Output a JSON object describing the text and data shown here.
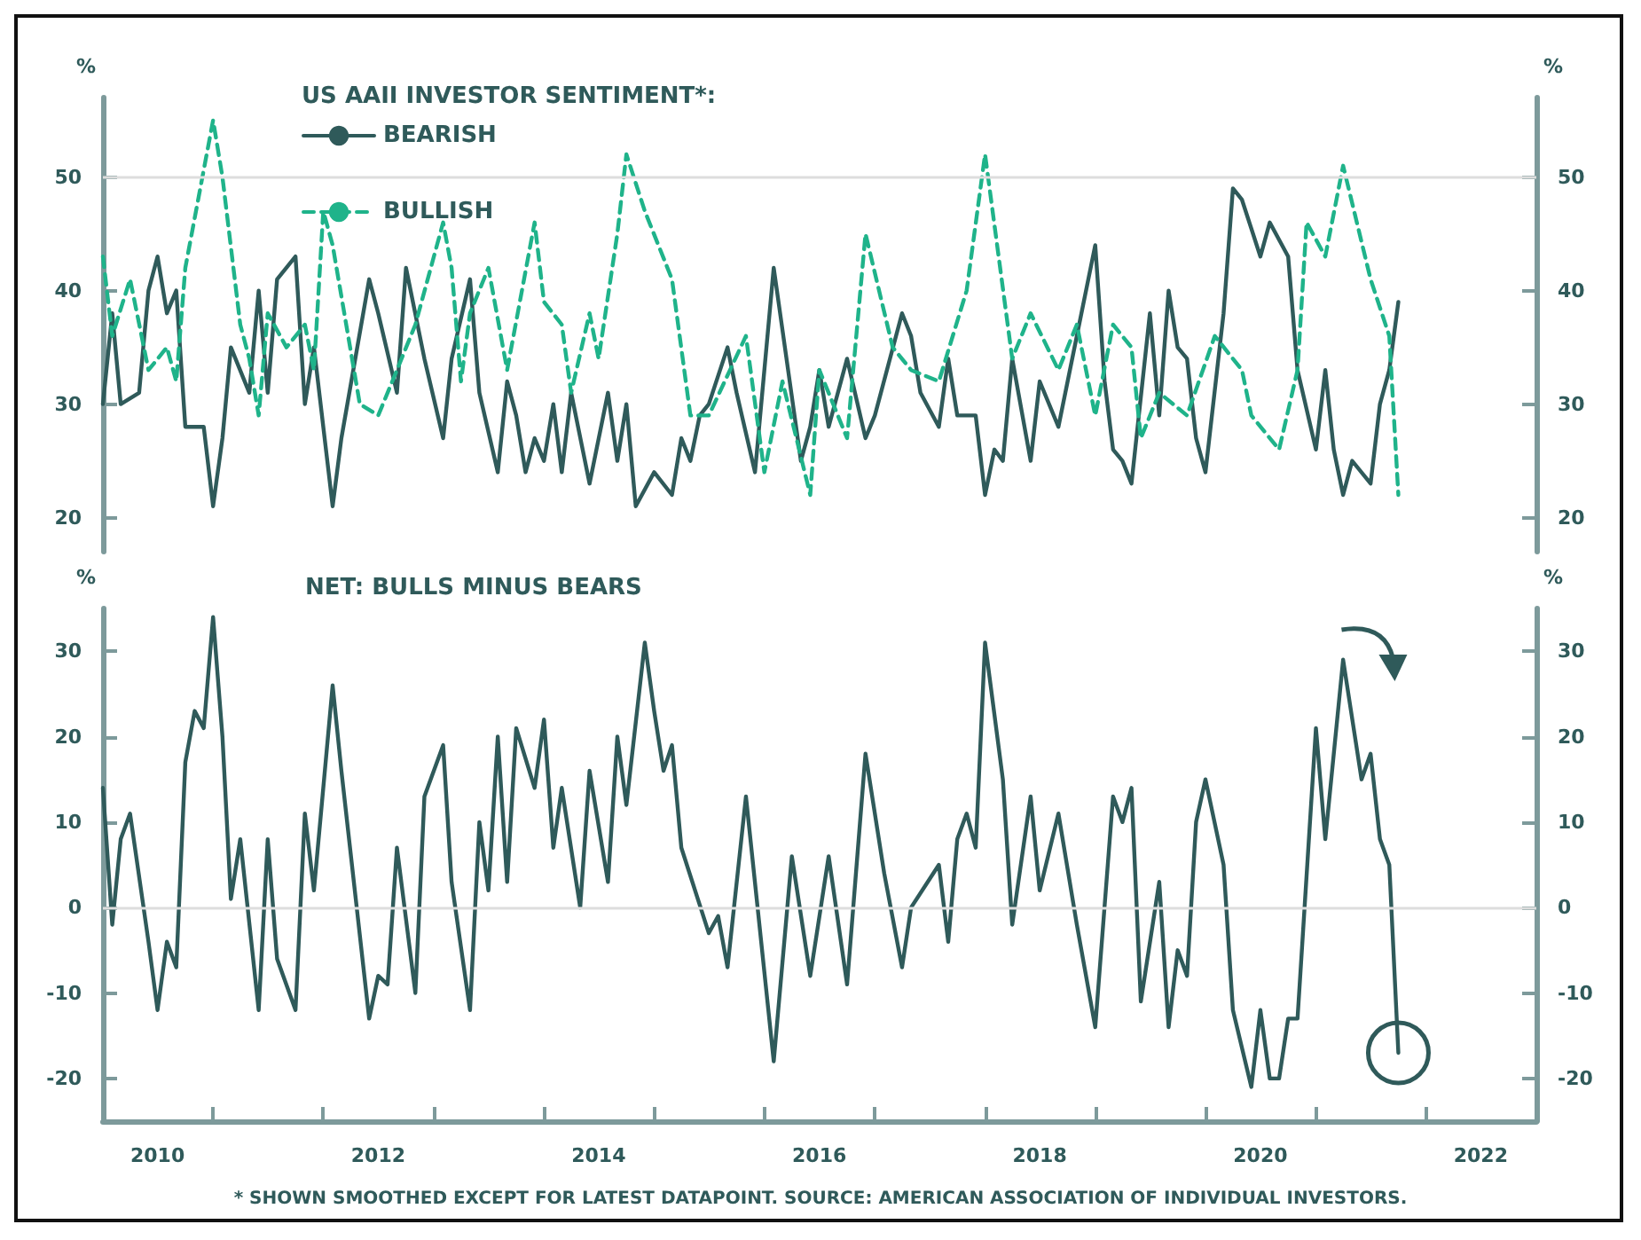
{
  "chart_data": [
    {
      "type": "line",
      "legend_title": "US AAII INVESTOR SENTIMENT*:",
      "ylabel": "%",
      "y2label": "%",
      "xlim": [
        "2010-01",
        "2023-01"
      ],
      "ylim": [
        17,
        57
      ],
      "yticks": [
        20,
        30,
        40,
        50
      ],
      "y2lim": [
        17,
        57
      ],
      "y2ticks": [
        20,
        30,
        40,
        50
      ],
      "tick_labels": "y",
      "legend": "top left",
      "grid": false,
      "ref_lines": [
        {
          "axis": "y",
          "value": 50,
          "label": null,
          "color": "#dddddd"
        }
      ],
      "series": [
        {
          "name": "BEARISH",
          "color": "#2f5a5a",
          "line_style": "solid",
          "x": [
            "2010-01",
            "2010-02",
            "2010-03",
            "2010-05",
            "2010-06",
            "2010-07",
            "2010-08",
            "2010-09",
            "2010-10",
            "2010-12",
            "2011-01",
            "2011-02",
            "2011-03",
            "2011-05",
            "2011-06",
            "2011-07",
            "2011-08",
            "2011-10",
            "2011-11",
            "2011-12",
            "2012-02",
            "2012-03",
            "2012-06",
            "2012-07",
            "2012-09",
            "2012-10",
            "2012-12",
            "2013-02",
            "2013-03",
            "2013-05",
            "2013-06",
            "2013-08",
            "2013-09",
            "2013-10",
            "2013-11",
            "2013-12",
            "2014-01",
            "2014-02",
            "2014-03",
            "2014-04",
            "2014-06",
            "2014-08",
            "2014-09",
            "2014-10",
            "2014-11",
            "2015-01",
            "2015-03",
            "2015-04",
            "2015-05",
            "2015-06",
            "2015-07",
            "2015-09",
            "2015-10",
            "2015-12",
            "2016-02",
            "2016-05",
            "2016-06",
            "2016-07",
            "2016-08",
            "2016-10",
            "2016-12",
            "2017-01",
            "2017-04",
            "2017-05",
            "2017-06",
            "2017-08",
            "2017-09",
            "2017-10",
            "2017-12",
            "2018-01",
            "2018-02",
            "2018-03",
            "2018-04",
            "2018-06",
            "2018-07",
            "2018-09",
            "2018-11",
            "2019-01",
            "2019-02",
            "2019-03",
            "2019-04",
            "2019-05",
            "2019-07",
            "2019-08",
            "2019-09",
            "2019-10",
            "2019-11",
            "2019-12",
            "2020-01",
            "2020-03",
            "2020-04",
            "2020-05",
            "2020-07",
            "2020-08",
            "2020-10",
            "2020-11",
            "2021-01",
            "2021-02",
            "2021-03",
            "2021-04",
            "2021-05",
            "2021-07",
            "2021-08",
            "2021-09",
            "2021-10"
          ],
          "values": [
            30,
            38,
            30,
            31,
            40,
            43,
            38,
            40,
            28,
            28,
            21,
            27,
            35,
            31,
            40,
            31,
            41,
            43,
            30,
            35,
            21,
            27,
            41,
            38,
            31,
            42,
            34,
            27,
            34,
            41,
            31,
            24,
            32,
            29,
            24,
            27,
            25,
            30,
            24,
            31,
            23,
            31,
            25,
            30,
            21,
            24,
            22,
            27,
            25,
            29,
            30,
            35,
            31,
            24,
            42,
            25,
            28,
            33,
            28,
            34,
            27,
            29,
            38,
            36,
            31,
            28,
            34,
            29,
            29,
            22,
            26,
            25,
            34,
            25,
            32,
            28,
            36,
            44,
            32,
            26,
            25,
            23,
            38,
            29,
            40,
            35,
            34,
            27,
            24,
            38,
            49,
            48,
            43,
            46,
            43,
            33,
            26,
            33,
            26,
            22,
            25,
            23,
            30,
            33,
            39
          ]
        },
        {
          "name": "BULLISH",
          "color": "#1fb38a",
          "line_style": "dashed",
          "x": [
            "2010-01",
            "2010-02",
            "2010-04",
            "2010-06",
            "2010-08",
            "2010-09",
            "2010-10",
            "2011-01",
            "2011-02",
            "2011-04",
            "2011-05",
            "2011-06",
            "2011-07",
            "2011-09",
            "2011-11",
            "2011-12",
            "2012-01",
            "2012-02",
            "2012-05",
            "2012-07",
            "2012-09",
            "2012-11",
            "2013-02",
            "2013-03",
            "2013-04",
            "2013-05",
            "2013-07",
            "2013-09",
            "2013-12",
            "2014-01",
            "2014-03",
            "2014-04",
            "2014-06",
            "2014-07",
            "2014-09",
            "2014-10",
            "2014-12",
            "2015-03",
            "2015-05",
            "2015-07",
            "2015-11",
            "2016-01",
            "2016-03",
            "2016-06",
            "2016-07",
            "2016-10",
            "2016-12",
            "2017-03",
            "2017-05",
            "2017-08",
            "2017-11",
            "2018-01",
            "2018-04",
            "2018-06",
            "2018-09",
            "2018-11",
            "2019-01",
            "2019-03",
            "2019-05",
            "2019-06",
            "2019-08",
            "2019-11",
            "2020-02",
            "2020-05",
            "2020-06",
            "2020-09",
            "2020-11",
            "2020-12",
            "2021-02",
            "2021-04",
            "2021-07",
            "2021-09",
            "2021-10"
          ],
          "values": [
            43,
            36,
            41,
            33,
            35,
            32,
            42,
            55,
            50,
            37,
            34,
            29,
            38,
            35,
            37,
            33,
            47,
            44,
            30,
            29,
            33,
            37,
            46,
            42,
            32,
            38,
            42,
            33,
            46,
            39,
            37,
            31,
            38,
            34,
            45,
            52,
            47,
            41,
            29,
            29,
            36,
            24,
            32,
            22,
            33,
            27,
            45,
            35,
            33,
            32,
            40,
            52,
            34,
            38,
            33,
            37,
            29,
            37,
            35,
            27,
            31,
            29,
            36,
            33,
            29,
            26,
            33,
            46,
            43,
            51,
            41,
            36,
            22
          ]
        }
      ]
    },
    {
      "type": "line",
      "title": "NET: BULLS MINUS BEARS",
      "ylabel": "%",
      "y2label": "%",
      "xlim": [
        "2010-01",
        "2023-01"
      ],
      "xticks": [
        {
          "value": "2010-07",
          "label": "2010"
        },
        {
          "value": "2011-01",
          "label": null
        },
        {
          "value": "2012-01",
          "label": null
        },
        {
          "value": "2012-07",
          "label": "2012"
        },
        {
          "value": "2013-01",
          "label": null
        },
        {
          "value": "2014-01",
          "label": null
        },
        {
          "value": "2014-07",
          "label": "2014"
        },
        {
          "value": "2015-01",
          "label": null
        },
        {
          "value": "2016-01",
          "label": null
        },
        {
          "value": "2016-07",
          "label": "2016"
        },
        {
          "value": "2017-01",
          "label": null
        },
        {
          "value": "2018-01",
          "label": null
        },
        {
          "value": "2018-07",
          "label": "2018"
        },
        {
          "value": "2019-01",
          "label": null
        },
        {
          "value": "2020-01",
          "label": null
        },
        {
          "value": "2020-07",
          "label": "2020"
        },
        {
          "value": "2021-01",
          "label": null
        },
        {
          "value": "2022-01",
          "label": null
        },
        {
          "value": "2022-07",
          "label": "2022"
        }
      ],
      "ylim": [
        -25,
        35
      ],
      "yticks": [
        -20,
        -10,
        0,
        10,
        20,
        30
      ],
      "y2lim": [
        -25,
        35
      ],
      "y2ticks": [
        -20,
        -10,
        0,
        10,
        20,
        30
      ],
      "grid": false,
      "ref_lines": [
        {
          "axis": "y",
          "value": 0,
          "label": null,
          "color": "#dddddd"
        }
      ],
      "annotations": [
        "* SHOWN SMOOTHED EXCEPT FOR LATEST DATAPOINT. SOURCE: AMERICAN ASSOCIATION OF INDIVIDUAL INVESTORS."
      ],
      "series": [
        {
          "color": "#2f5a5a",
          "x": [
            "2010-01",
            "2010-02",
            "2010-03",
            "2010-04",
            "2010-06",
            "2010-07",
            "2010-08",
            "2010-09",
            "2010-10",
            "2010-11",
            "2010-12",
            "2011-01",
            "2011-02",
            "2011-03",
            "2011-04",
            "2011-06",
            "2011-07",
            "2011-08",
            "2011-10",
            "2011-11",
            "2011-12",
            "2012-02",
            "2012-03",
            "2012-06",
            "2012-07",
            "2012-08",
            "2012-09",
            "2012-11",
            "2012-12",
            "2013-02",
            "2013-03",
            "2013-05",
            "2013-06",
            "2013-07",
            "2013-08",
            "2013-09",
            "2013-10",
            "2013-12",
            "2014-01",
            "2014-02",
            "2014-03",
            "2014-05",
            "2014-06",
            "2014-08",
            "2014-09",
            "2014-10",
            "2014-12",
            "2015-01",
            "2015-02",
            "2015-03",
            "2015-04",
            "2015-07",
            "2015-08",
            "2015-09",
            "2015-11",
            "2016-02",
            "2016-04",
            "2016-06",
            "2016-08",
            "2016-10",
            "2016-12",
            "2017-02",
            "2017-04",
            "2017-05",
            "2017-08",
            "2017-09",
            "2017-10",
            "2017-11",
            "2017-12",
            "2018-01",
            "2018-03",
            "2018-04",
            "2018-06",
            "2018-07",
            "2018-09",
            "2018-11",
            "2019-01",
            "2019-03",
            "2019-04",
            "2019-05",
            "2019-06",
            "2019-08",
            "2019-09",
            "2019-10",
            "2019-11",
            "2019-12",
            "2020-01",
            "2020-03",
            "2020-04",
            "2020-06",
            "2020-07",
            "2020-08",
            "2020-09",
            "2020-10",
            "2020-11",
            "2021-01",
            "2021-02",
            "2021-04",
            "2021-06",
            "2021-07",
            "2021-08",
            "2021-09",
            "2021-10"
          ],
          "values": [
            14,
            -2,
            8,
            11,
            -4,
            -12,
            -4,
            -7,
            17,
            23,
            21,
            34,
            20,
            1,
            8,
            -12,
            8,
            -6,
            -12,
            11,
            2,
            26,
            16,
            -13,
            -8,
            -9,
            7,
            -10,
            13,
            19,
            3,
            -12,
            10,
            2,
            20,
            3,
            21,
            14,
            22,
            7,
            14,
            0,
            16,
            3,
            20,
            12,
            31,
            23,
            16,
            19,
            7,
            -3,
            -1,
            -7,
            13,
            -18,
            6,
            -8,
            6,
            -9,
            18,
            4,
            -7,
            0,
            5,
            -4,
            8,
            11,
            7,
            31,
            15,
            -2,
            13,
            2,
            11,
            -2,
            -14,
            13,
            10,
            14,
            -11,
            3,
            -14,
            -5,
            -8,
            10,
            15,
            5,
            -12,
            -21,
            -12,
            -20,
            -20,
            -13,
            -13,
            21,
            8,
            29,
            15,
            18,
            8,
            5,
            -17
          ]
        }
      ]
    }
  ]
}
